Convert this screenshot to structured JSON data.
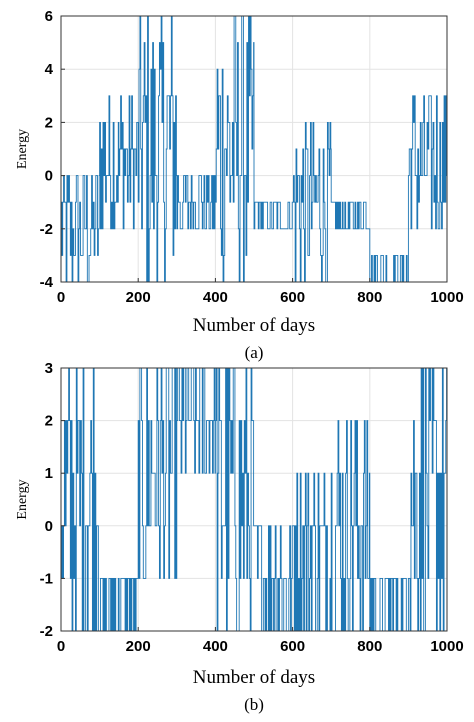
{
  "chart_data": [
    {
      "type": "line",
      "panel_label": "(a)",
      "xlabel": "Number of days",
      "ylabel": "Energy",
      "xlim": [
        0,
        1000
      ],
      "ylim": [
        -4,
        6
      ],
      "xticks": [
        0,
        200,
        400,
        600,
        800,
        1000
      ],
      "yticks": [
        -4,
        -2,
        0,
        2,
        4,
        6
      ],
      "grid": true,
      "color": "#1f77b4",
      "series": [
        {
          "segments": [
            {
              "x_start": 0,
              "x_end": 100,
              "values": [
                -4,
                -3,
                -2,
                -1,
                0
              ]
            },
            {
              "x_start": 100,
              "x_end": 150,
              "values": [
                -2,
                -1,
                0,
                1,
                2,
                3
              ]
            },
            {
              "x_start": 150,
              "x_end": 200,
              "values": [
                -2,
                -1,
                0,
                1,
                2,
                3
              ]
            },
            {
              "x_start": 200,
              "x_end": 300,
              "values": [
                -4,
                -3,
                -2,
                -1,
                0,
                1,
                2,
                3,
                4,
                5,
                6
              ]
            },
            {
              "x_start": 300,
              "x_end": 400,
              "values": [
                -2,
                -1,
                0
              ]
            },
            {
              "x_start": 400,
              "x_end": 500,
              "values": [
                -4,
                -3,
                -2,
                -1,
                0,
                1,
                2,
                3,
                4,
                5,
                6
              ]
            },
            {
              "x_start": 500,
              "x_end": 600,
              "values": [
                -2,
                -1
              ]
            },
            {
              "x_start": 600,
              "x_end": 700,
              "values": [
                -4,
                -3,
                -2,
                -1,
                0,
                1,
                2
              ]
            },
            {
              "x_start": 700,
              "x_end": 800,
              "values": [
                -2,
                -1
              ]
            },
            {
              "x_start": 800,
              "x_end": 900,
              "values": [
                -4,
                -3
              ]
            },
            {
              "x_start": 900,
              "x_end": 1000,
              "values": [
                -2,
                -1,
                0,
                1,
                2,
                3
              ]
            }
          ]
        }
      ]
    },
    {
      "type": "line",
      "panel_label": "(b)",
      "xlabel": "Number of days",
      "ylabel": "Energy",
      "xlim": [
        0,
        1000
      ],
      "ylim": [
        -2,
        3
      ],
      "xticks": [
        0,
        200,
        400,
        600,
        800,
        1000
      ],
      "yticks": [
        -2,
        -1,
        0,
        1,
        2,
        3
      ],
      "grid": true,
      "color": "#1f77b4",
      "series": [
        {
          "segments": [
            {
              "x_start": 0,
              "x_end": 100,
              "values": [
                -2,
                -1,
                0,
                1,
                2,
                3
              ]
            },
            {
              "x_start": 100,
              "x_end": 200,
              "values": [
                -2,
                -1
              ]
            },
            {
              "x_start": 200,
              "x_end": 300,
              "values": [
                -1,
                0,
                1,
                2,
                3
              ]
            },
            {
              "x_start": 300,
              "x_end": 400,
              "values": [
                1,
                2,
                3
              ]
            },
            {
              "x_start": 400,
              "x_end": 500,
              "values": [
                -2,
                -1,
                0,
                1,
                2,
                3
              ]
            },
            {
              "x_start": 500,
              "x_end": 600,
              "values": [
                -2,
                -1,
                0
              ]
            },
            {
              "x_start": 600,
              "x_end": 700,
              "values": [
                -2,
                -1,
                0,
                1
              ]
            },
            {
              "x_start": 700,
              "x_end": 800,
              "values": [
                -2,
                -1,
                0,
                1,
                2
              ]
            },
            {
              "x_start": 800,
              "x_end": 900,
              "values": [
                -2,
                -1
              ]
            },
            {
              "x_start": 900,
              "x_end": 1000,
              "values": [
                -2,
                -1,
                0,
                1,
                2,
                3
              ]
            }
          ]
        }
      ]
    }
  ]
}
